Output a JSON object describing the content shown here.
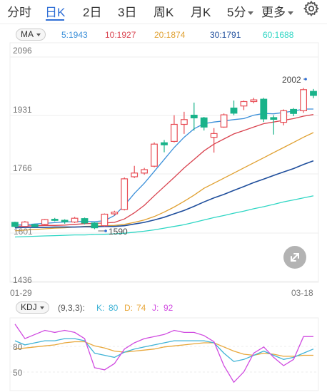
{
  "tabs": [
    {
      "label": "分时",
      "active": false
    },
    {
      "label": "日K",
      "active": true
    },
    {
      "label": "2日",
      "active": false
    },
    {
      "label": "3日",
      "active": false
    },
    {
      "label": "周K",
      "active": false
    },
    {
      "label": "月K",
      "active": false
    },
    {
      "label": "5分",
      "active": false
    },
    {
      "label": "更多",
      "active": false
    }
  ],
  "settings_icon": "gear-icon",
  "ma": {
    "selector": "MA",
    "items": [
      {
        "text": "5:1943",
        "color": "#3a8fd9"
      },
      {
        "text": "10:1927",
        "color": "#d9434f"
      },
      {
        "text": "20:1874",
        "color": "#e0a030"
      },
      {
        "text": "30:1791",
        "color": "#1f4e9c"
      },
      {
        "text": "60:1688",
        "color": "#2ed6c4"
      }
    ]
  },
  "price_axis": [
    "2096",
    "1931",
    "1766",
    "1436"
  ],
  "date_axis": {
    "start": "01-29",
    "end": "03-18"
  },
  "annotations": {
    "high": "2002",
    "low": "1590",
    "left_low": "1601"
  },
  "colors": {
    "up": "#e84d55",
    "down": "#19b38a",
    "accent": "#2f6fd6"
  },
  "candles": [
    {
      "o": 1610,
      "c": 1598,
      "h": 1612,
      "l": 1595
    },
    {
      "o": 1598,
      "c": 1611,
      "h": 1614,
      "l": 1596
    },
    {
      "o": 1603,
      "c": 1598,
      "h": 1606,
      "l": 1596
    },
    {
      "o": 1604,
      "c": 1618,
      "h": 1620,
      "l": 1602
    },
    {
      "o": 1619,
      "c": 1617,
      "h": 1623,
      "l": 1613
    },
    {
      "o": 1616,
      "c": 1612,
      "h": 1619,
      "l": 1606
    },
    {
      "o": 1611,
      "c": 1622,
      "h": 1626,
      "l": 1608
    },
    {
      "o": 1621,
      "c": 1608,
      "h": 1624,
      "l": 1604
    },
    {
      "o": 1608,
      "c": 1594,
      "h": 1610,
      "l": 1590
    },
    {
      "o": 1600,
      "c": 1634,
      "h": 1636,
      "l": 1598
    },
    {
      "o": 1635,
      "c": 1640,
      "h": 1644,
      "l": 1630
    },
    {
      "o": 1648,
      "c": 1738,
      "h": 1742,
      "l": 1645
    },
    {
      "o": 1744,
      "c": 1755,
      "h": 1776,
      "l": 1740
    },
    {
      "o": 1755,
      "c": 1765,
      "h": 1770,
      "l": 1750
    },
    {
      "o": 1775,
      "c": 1840,
      "h": 1845,
      "l": 1772
    },
    {
      "o": 1844,
      "c": 1838,
      "h": 1852,
      "l": 1816
    },
    {
      "o": 1848,
      "c": 1898,
      "h": 1925,
      "l": 1845
    },
    {
      "o": 1898,
      "c": 1912,
      "h": 1935,
      "l": 1870
    },
    {
      "o": 1925,
      "c": 1917,
      "h": 1962,
      "l": 1880
    },
    {
      "o": 1917,
      "c": 1890,
      "h": 1920,
      "l": 1880
    },
    {
      "o": 1860,
      "c": 1871,
      "h": 1887,
      "l": 1815
    },
    {
      "o": 1890,
      "c": 1926,
      "h": 1930,
      "l": 1888
    },
    {
      "o": 1946,
      "c": 1931,
      "h": 1968,
      "l": 1925
    },
    {
      "o": 1952,
      "c": 1965,
      "h": 1968,
      "l": 1940
    },
    {
      "o": 1965,
      "c": 1970,
      "h": 1976,
      "l": 1960
    },
    {
      "o": 1972,
      "c": 1914,
      "h": 1976,
      "l": 1905
    },
    {
      "o": 1918,
      "c": 1913,
      "h": 1925,
      "l": 1868
    },
    {
      "o": 1904,
      "c": 1938,
      "h": 1942,
      "l": 1895
    },
    {
      "o": 1942,
      "c": 1930,
      "h": 1946,
      "l": 1922
    },
    {
      "o": 1938,
      "c": 2000,
      "h": 2005,
      "l": 1932
    },
    {
      "o": 1995,
      "c": 1983,
      "h": 2002,
      "l": 1975
    }
  ],
  "ma_lines": {
    "ma5": [
      1602,
      1603,
      1605,
      1607,
      1609,
      1611,
      1612,
      1613,
      1612,
      1615,
      1630,
      1660,
      1695,
      1725,
      1760,
      1795,
      1830,
      1860,
      1885,
      1900,
      1905,
      1908,
      1912,
      1915,
      1925,
      1930,
      1929,
      1933,
      1937,
      1943,
      1943
    ],
    "ma10": [
      1598,
      1599,
      1600,
      1601,
      1601,
      1602,
      1604,
      1606,
      1607,
      1608,
      1610,
      1620,
      1638,
      1660,
      1688,
      1715,
      1742,
      1770,
      1795,
      1820,
      1840,
      1855,
      1870,
      1880,
      1890,
      1900,
      1905,
      1910,
      1915,
      1922,
      1927
    ],
    "ma20": [
      1585,
      1587,
      1589,
      1591,
      1593,
      1594,
      1596,
      1598,
      1599,
      1600,
      1601,
      1604,
      1610,
      1617,
      1627,
      1640,
      1655,
      1672,
      1690,
      1710,
      1725,
      1740,
      1755,
      1770,
      1785,
      1800,
      1815,
      1830,
      1845,
      1860,
      1874
    ],
    "ma30": [
      1594,
      1595,
      1595,
      1595,
      1596,
      1596,
      1596,
      1597,
      1597,
      1598,
      1598,
      1600,
      1605,
      1610,
      1617,
      1625,
      1635,
      1645,
      1657,
      1670,
      1682,
      1692,
      1704,
      1715,
      1727,
      1737,
      1748,
      1758,
      1768,
      1780,
      1791
    ],
    "ma60": [
      1567,
      1568,
      1569,
      1570,
      1571,
      1572,
      1573,
      1573,
      1574,
      1575,
      1576,
      1578,
      1581,
      1584,
      1588,
      1593,
      1598,
      1603,
      1610,
      1617,
      1624,
      1630,
      1637,
      1643,
      1650,
      1656,
      1663,
      1670,
      1676,
      1682,
      1688
    ]
  },
  "kdj": {
    "selector": "KDJ",
    "params": "(9,3,3):",
    "k_label": "K:",
    "k_value": "80",
    "d_label": "D:",
    "d_value": "74",
    "j_label": "J:",
    "j_value": "92",
    "k_color": "#3fb3d6",
    "d_color": "#e8a73a",
    "j_color": "#d04be0",
    "axis": [
      "80",
      "50"
    ],
    "k": [
      88,
      84,
      86,
      88,
      88,
      90,
      90,
      88,
      76,
      74,
      72,
      77,
      80,
      82,
      84,
      86,
      88,
      88,
      88,
      88,
      86,
      76,
      68,
      70,
      74,
      78,
      74,
      70,
      72,
      76,
      80
    ],
    "d": [
      80,
      81,
      82,
      83,
      84,
      86,
      87,
      87,
      83,
      81,
      78,
      77,
      78,
      79,
      80,
      82,
      83,
      84,
      85,
      86,
      86,
      82,
      78,
      75,
      74,
      76,
      75,
      73,
      73,
      74,
      74
    ],
    "j": [
      104,
      90,
      94,
      98,
      96,
      98,
      96,
      90,
      62,
      60,
      66,
      80,
      86,
      90,
      92,
      94,
      98,
      96,
      96,
      93,
      87,
      64,
      48,
      58,
      76,
      82,
      72,
      64,
      70,
      92,
      92
    ]
  }
}
